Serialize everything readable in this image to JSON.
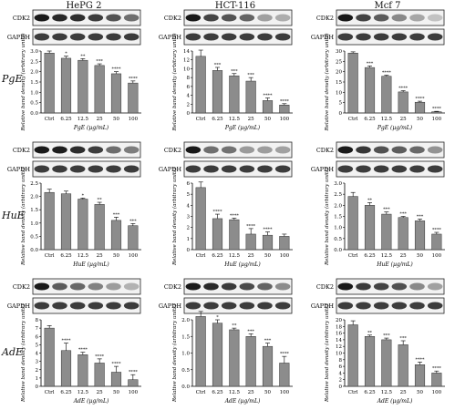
{
  "columns": [
    "HePG 2",
    "HCT-116",
    "Mcf 7"
  ],
  "rows": [
    "PgE",
    "HuE",
    "AdE"
  ],
  "chart_data": [
    {
      "type": "bar",
      "row": "PgE",
      "column": "HePG 2",
      "blot_labels": [
        "CDK2",
        "GAPDH"
      ],
      "ylabel": "Relative band density (arbitrary units)",
      "xlabel": "PgE (µg/mL)",
      "categories": [
        "Ctrl",
        "6.25",
        "12.5",
        "25",
        "50",
        "100"
      ],
      "values": [
        2.9,
        2.65,
        2.55,
        2.3,
        1.9,
        1.45
      ],
      "errors": [
        0.1,
        0.1,
        0.08,
        0.08,
        0.1,
        0.1
      ],
      "significance": [
        "",
        "*",
        "**",
        "***",
        "****",
        "****"
      ],
      "ylim": [
        0,
        3.0
      ],
      "yticks": [
        0,
        0.5,
        1.0,
        1.5,
        2.0,
        2.5,
        3.0
      ]
    },
    {
      "type": "bar",
      "row": "PgE",
      "column": "HCT-116",
      "blot_labels": [
        "CDK2",
        "GAPDH"
      ],
      "ylabel": "Relative band density (arbitrary units)",
      "xlabel": "PgE (µg/mL)",
      "categories": [
        "Ctrl",
        "6.25",
        "12.5",
        "25",
        "50",
        "100"
      ],
      "values": [
        12.8,
        9.6,
        8.4,
        7.2,
        2.8,
        1.8
      ],
      "errors": [
        1.4,
        0.7,
        0.5,
        0.8,
        0.6,
        0.3
      ],
      "significance": [
        "",
        "***",
        "***",
        "***",
        "****",
        "****"
      ],
      "ylim": [
        0,
        14
      ],
      "yticks": [
        0,
        2,
        4,
        6,
        8,
        10,
        12,
        14
      ]
    },
    {
      "type": "bar",
      "row": "PgE",
      "column": "Mcf 7",
      "blot_labels": [
        "CDK2",
        "GAPDH"
      ],
      "ylabel": "Relative band density (arbitrary units)",
      "xlabel": "PgE (µg/mL)",
      "categories": [
        "Ctrl",
        "6.25",
        "12.5",
        "25",
        "50",
        "100"
      ],
      "values": [
        29,
        22,
        17.8,
        10.2,
        5.2,
        0.6
      ],
      "errors": [
        0.6,
        0.8,
        0.5,
        0.6,
        0.5,
        0.2
      ],
      "significance": [
        "",
        "***",
        "****",
        "****",
        "****",
        "****"
      ],
      "ylim": [
        0,
        30
      ],
      "yticks": [
        0,
        5,
        10,
        15,
        20,
        25,
        30
      ]
    },
    {
      "type": "bar",
      "row": "HuE",
      "column": "HePG 2",
      "blot_labels": [
        "CDK2",
        "GAPDH"
      ],
      "ylabel": "Relative band density (arbitrary units)",
      "xlabel": "HuE (µg/mL)",
      "categories": [
        "Ctrl",
        "6.25",
        "12.5",
        "25",
        "50",
        "100"
      ],
      "values": [
        2.15,
        2.1,
        1.9,
        1.7,
        1.1,
        0.9
      ],
      "errors": [
        0.12,
        0.1,
        0.04,
        0.08,
        0.12,
        0.08
      ],
      "significance": [
        "",
        "",
        "*",
        "**",
        "***",
        "***"
      ],
      "ylim": [
        0,
        2.5
      ],
      "yticks": [
        0,
        0.5,
        1.0,
        1.5,
        2.0,
        2.5
      ]
    },
    {
      "type": "bar",
      "row": "HuE",
      "column": "HCT-116",
      "blot_labels": [
        "CDK2",
        "GAPDH"
      ],
      "ylabel": "Relative band density (arbitrary units)",
      "xlabel": "HuE (µg/mL)",
      "categories": [
        "Ctrl",
        "6.25",
        "12.5",
        "25",
        "50",
        "100"
      ],
      "values": [
        5.6,
        2.8,
        2.7,
        1.4,
        1.3,
        1.2
      ],
      "errors": [
        0.5,
        0.4,
        0.15,
        0.5,
        0.3,
        0.2
      ],
      "significance": [
        "",
        "****",
        "****",
        "****",
        "****",
        ""
      ],
      "ylim": [
        0,
        6
      ],
      "yticks": [
        0,
        1,
        2,
        3,
        4,
        5,
        6
      ]
    },
    {
      "type": "bar",
      "row": "HuE",
      "column": "Mcf 7",
      "blot_labels": [
        "CDK2",
        "GAPDH"
      ],
      "ylabel": "Relative band density (arbitrary units)",
      "xlabel": "HuE (µg/mL)",
      "categories": [
        "Ctrl",
        "6.25",
        "12.5",
        "25",
        "50",
        "100"
      ],
      "values": [
        2.4,
        2.0,
        1.6,
        1.45,
        1.3,
        0.7
      ],
      "errors": [
        0.18,
        0.12,
        0.1,
        0.05,
        0.08,
        0.08
      ],
      "significance": [
        "",
        "**",
        "***",
        "***",
        "***",
        "****"
      ],
      "ylim": [
        0,
        3.0
      ],
      "yticks": [
        0,
        0.5,
        1.0,
        1.5,
        2.0,
        2.5,
        3.0
      ]
    },
    {
      "type": "bar",
      "row": "AdE",
      "column": "HePG 2",
      "blot_labels": [
        "CDK2",
        "GAPDH"
      ],
      "ylabel": "Relative band density (arbitrary units)",
      "xlabel": "AdE (µg/mL)",
      "categories": [
        "Ctrl",
        "6.25",
        "12.5",
        "25",
        "50",
        "100"
      ],
      "values": [
        7.0,
        4.3,
        3.8,
        2.8,
        1.7,
        0.8
      ],
      "errors": [
        0.3,
        0.9,
        0.3,
        0.5,
        0.7,
        0.6
      ],
      "significance": [
        "",
        "****",
        "****",
        "****",
        "****",
        "****"
      ],
      "ylim": [
        0,
        8
      ],
      "yticks": [
        0,
        1,
        2,
        3,
        4,
        5,
        6,
        7,
        8
      ]
    },
    {
      "type": "bar",
      "row": "AdE",
      "column": "HCT-116",
      "blot_labels": [
        "CDK2",
        "GAPDH"
      ],
      "ylabel": "Relative band density (arbitrary units)",
      "xlabel": "AdE (µg/mL)",
      "categories": [
        "Ctrl",
        "6.25",
        "12.5",
        "25",
        "50",
        "100"
      ],
      "values": [
        2.1,
        1.9,
        1.7,
        1.5,
        1.2,
        0.7
      ],
      "errors": [
        0.15,
        0.1,
        0.05,
        0.08,
        0.1,
        0.2
      ],
      "significance": [
        "",
        "*",
        "**",
        "***",
        "***",
        "****"
      ],
      "ylim": [
        0,
        2.0
      ],
      "yticks": [
        0,
        0.5,
        1.0,
        1.5,
        2.0
      ]
    },
    {
      "type": "bar",
      "row": "AdE",
      "column": "Mcf 7",
      "blot_labels": [
        "CDK2",
        "GAPDH"
      ],
      "ylabel": "Relative band density (arbitrary units)",
      "xlabel": "AdE (µg/mL)",
      "categories": [
        "Ctrl",
        "6.25",
        "12.5",
        "25",
        "50",
        "100"
      ],
      "values": [
        18.5,
        15,
        14,
        12.5,
        6.5,
        4
      ],
      "errors": [
        1.2,
        0.4,
        0.5,
        1.2,
        0.8,
        0.6
      ],
      "significance": [
        "",
        "**",
        "***",
        "***",
        "****",
        "****"
      ],
      "ylim": [
        0,
        20
      ],
      "yticks": [
        0,
        2,
        4,
        6,
        8,
        10,
        12,
        14,
        16,
        18,
        20
      ]
    }
  ]
}
